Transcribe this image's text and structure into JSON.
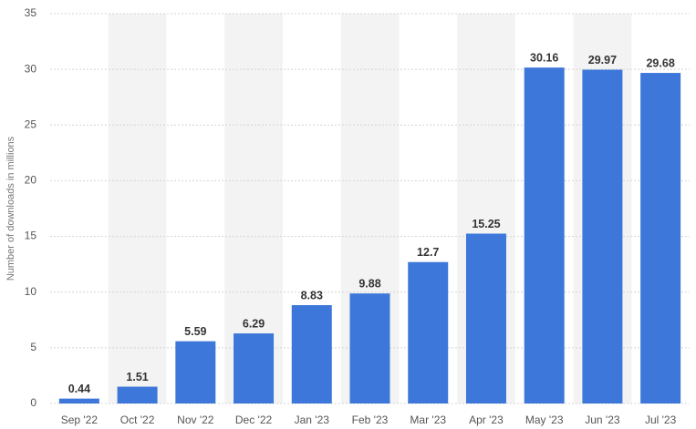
{
  "chart_data": {
    "type": "bar",
    "y_label": "Number of downloads in millions",
    "categories": [
      "Sep '22",
      "Oct '22",
      "Nov '22",
      "Dec '22",
      "Jan '23",
      "Feb '23",
      "Mar '23",
      "Apr '23",
      "May '23",
      "Jun '23",
      "Jul '23"
    ],
    "values": [
      0.44,
      1.51,
      5.59,
      6.29,
      8.83,
      9.88,
      12.7,
      15.25,
      30.16,
      29.97,
      29.68
    ],
    "color": "#3c77d9",
    "ylim": [
      0,
      35
    ],
    "yticks": [
      0,
      5,
      10,
      15,
      20,
      25,
      30,
      35
    ],
    "grid": true
  }
}
